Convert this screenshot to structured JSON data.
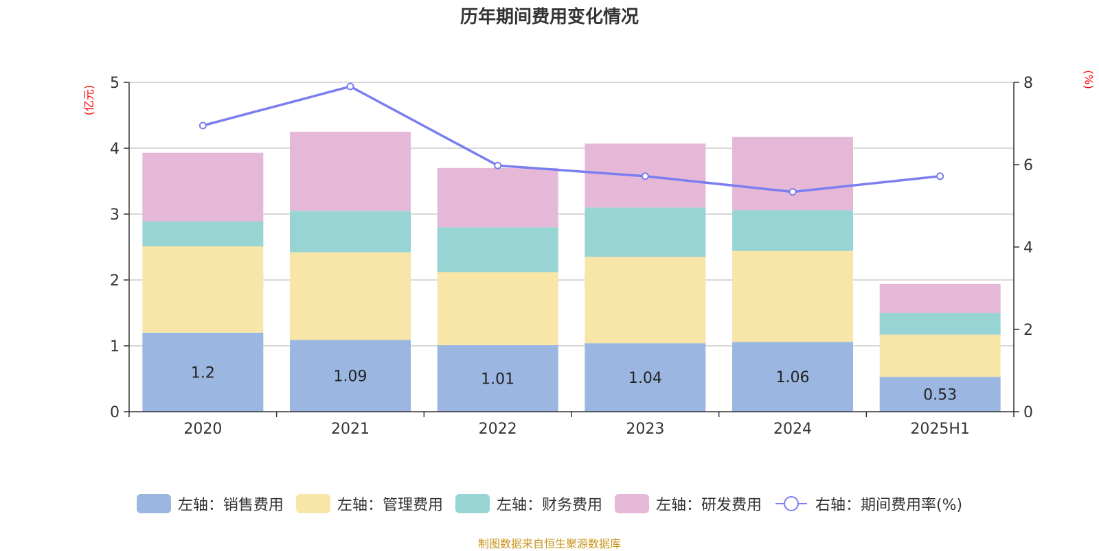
{
  "title": "历年期间费用变化情况",
  "source_text": "制图数据来自恒生聚源数据库",
  "colors": {
    "sales": "#9bb7e1",
    "admin": "#f7e6a8",
    "finance": "#98d4d4",
    "rd": "#e6b8d8",
    "rate_line": "#7b7ef0",
    "unit_label": "#ff0000",
    "source_text": "#c8941a"
  },
  "legend": [
    {
      "label": "左轴：销售费用",
      "color": "#9bb7e1",
      "kind": "box"
    },
    {
      "label": "左轴：管理费用",
      "color": "#f7e6a8",
      "kind": "box"
    },
    {
      "label": "左轴：财务费用",
      "color": "#98d4d4",
      "kind": "box"
    },
    {
      "label": "左轴：研发费用",
      "color": "#e6b8d8",
      "kind": "box"
    },
    {
      "label": "右轴：期间费用率(%)",
      "color": "#7b7ef0",
      "kind": "line"
    }
  ],
  "chart_data": {
    "type": "bar",
    "stacked": true,
    "categories": [
      "2020",
      "2021",
      "2022",
      "2023",
      "2024",
      "2025H1"
    ],
    "left_axis": {
      "unit": "(亿元)",
      "ylim": [
        0,
        5
      ],
      "ticks": [
        "0",
        "1",
        "2",
        "3",
        "4",
        "5"
      ]
    },
    "right_axis": {
      "unit": "(%)",
      "ylim": [
        0,
        8
      ],
      "ticks": [
        "0",
        "2",
        "4",
        "6",
        "8"
      ]
    },
    "grid": true,
    "legend_position": "bottom",
    "series": [
      {
        "name": "左轴：销售费用",
        "axis": "left",
        "type": "bar",
        "values": [
          1.2,
          1.09,
          1.01,
          1.04,
          1.06,
          0.53
        ],
        "data_labels": [
          "1.2",
          "1.09",
          "1.01",
          "1.04",
          "1.06",
          "0.53"
        ]
      },
      {
        "name": "左轴：管理费用",
        "axis": "left",
        "type": "bar",
        "values": [
          1.31,
          1.33,
          1.11,
          1.31,
          1.38,
          0.64
        ]
      },
      {
        "name": "左轴：财务费用",
        "axis": "left",
        "type": "bar",
        "values": [
          0.38,
          0.63,
          0.68,
          0.75,
          0.62,
          0.33
        ]
      },
      {
        "name": "左轴：研发费用",
        "axis": "left",
        "type": "bar",
        "values": [
          1.04,
          1.2,
          0.9,
          0.97,
          1.11,
          0.44
        ]
      },
      {
        "name": "右轴：期间费用率(%)",
        "axis": "right",
        "type": "line",
        "values": [
          6.95,
          7.9,
          5.98,
          5.72,
          5.34,
          5.72
        ]
      }
    ]
  }
}
